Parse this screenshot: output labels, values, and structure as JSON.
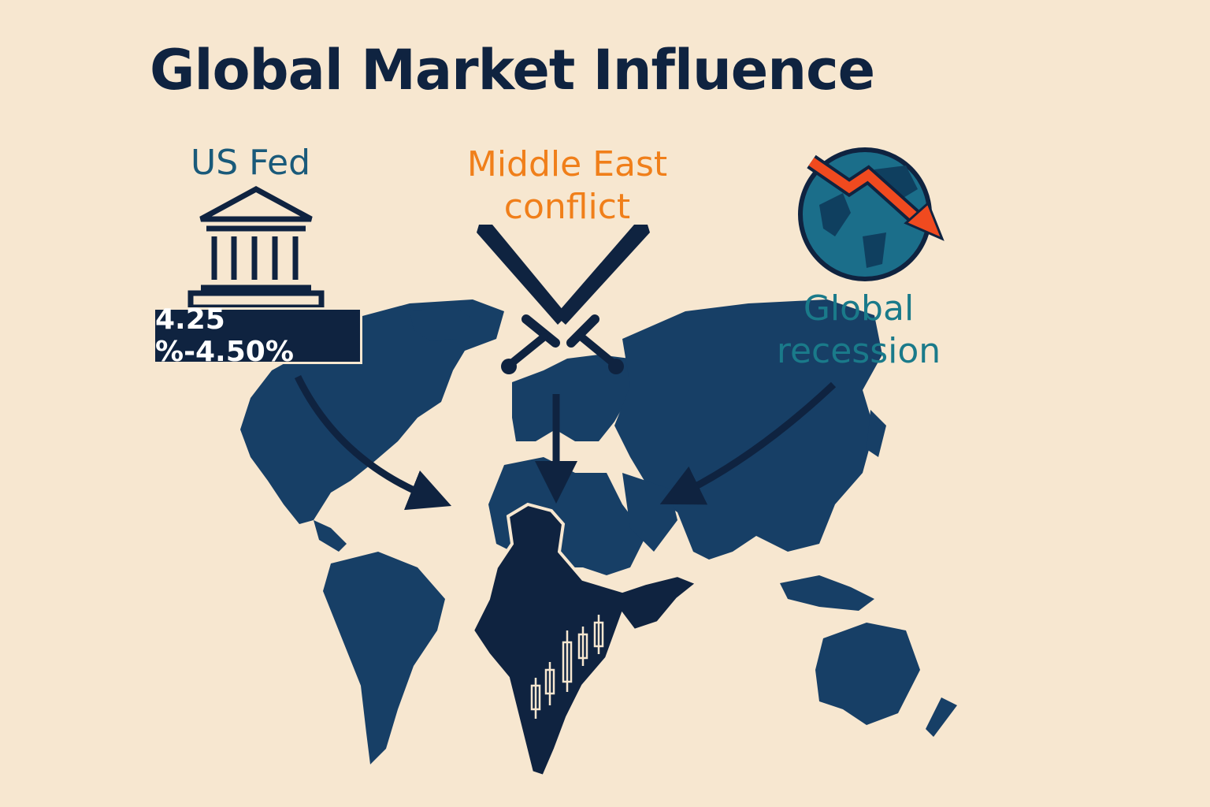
{
  "title": "Global Market Influence",
  "factors": {
    "us_fed": {
      "label": "US Fed",
      "rate": "4.25 %-4.50%"
    },
    "middle_east": {
      "line1": "Middle East",
      "line2": "conflict"
    },
    "recession": {
      "line1": "Global",
      "line2": "recession"
    }
  },
  "colors": {
    "background": "#f7e7d0",
    "title": "#0f2340",
    "map": "#173f66",
    "india": "#0f2340",
    "fed": "#1a5a7a",
    "conflict": "#f07f1a",
    "recession": "#1a7a8a",
    "arrow": "#0f2340",
    "trend_arrow": "#f04a1f"
  },
  "icons": {
    "fed": "bank-building-icon",
    "conflict": "crossed-swords-icon",
    "recession": "globe-down-trend-icon",
    "india": "candlestick-chart-icon"
  }
}
